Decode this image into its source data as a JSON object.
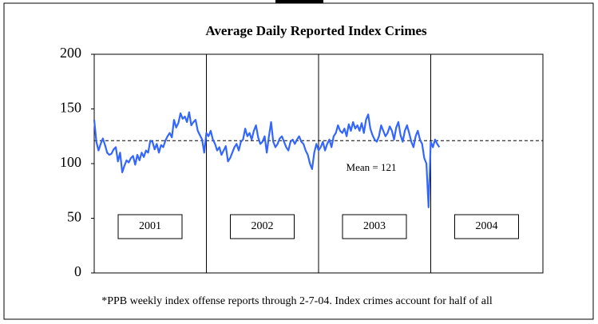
{
  "chart_data": {
    "type": "line",
    "title": "Average Daily Reported Index Crimes",
    "footnote": "*PPB weekly index offense reports through 2-7-04. Index crimes account for half of all",
    "years": [
      "2001",
      "2002",
      "2003",
      "2004"
    ],
    "ylim": [
      0,
      200
    ],
    "yticks": [
      0,
      50,
      100,
      150,
      200
    ],
    "mean": {
      "value": 121,
      "label": "Mean = 121"
    },
    "series": [
      {
        "color": "#3366ff",
        "values": [
          140,
          120,
          112,
          118,
          123,
          117,
          110,
          108,
          109,
          113,
          115,
          102,
          110,
          92,
          98,
          103,
          101,
          105,
          107,
          99,
          108,
          103,
          110,
          106,
          112,
          110,
          121,
          120,
          113,
          118,
          110,
          117,
          115,
          121,
          125,
          128,
          124,
          140,
          133,
          137,
          146,
          141,
          143,
          138,
          147,
          135,
          138,
          140,
          130,
          126,
          122,
          110,
          128,
          125,
          130,
          122,
          118,
          112,
          115,
          108,
          112,
          116,
          102,
          105,
          110,
          115,
          118,
          112,
          120,
          122,
          132,
          125,
          128,
          122,
          130,
          135,
          124,
          118,
          120,
          125,
          110,
          125,
          138,
          120,
          115,
          118,
          123,
          125,
          120,
          115,
          112,
          120,
          122,
          118,
          122,
          125,
          120,
          118,
          112,
          108,
          100,
          95,
          110,
          118,
          112,
          115,
          120,
          112,
          118,
          122,
          115,
          125,
          128,
          135,
          130,
          128,
          132,
          125,
          136,
          130,
          138,
          132,
          135,
          130,
          137,
          128,
          140,
          145,
          132,
          126,
          122,
          120,
          125,
          135,
          130,
          125,
          128,
          134,
          130,
          122,
          133,
          138,
          126,
          120,
          130,
          135,
          128,
          120,
          115,
          125,
          130,
          122,
          118,
          105,
          100,
          60,
          120,
          115,
          122,
          118,
          115
        ]
      }
    ]
  }
}
